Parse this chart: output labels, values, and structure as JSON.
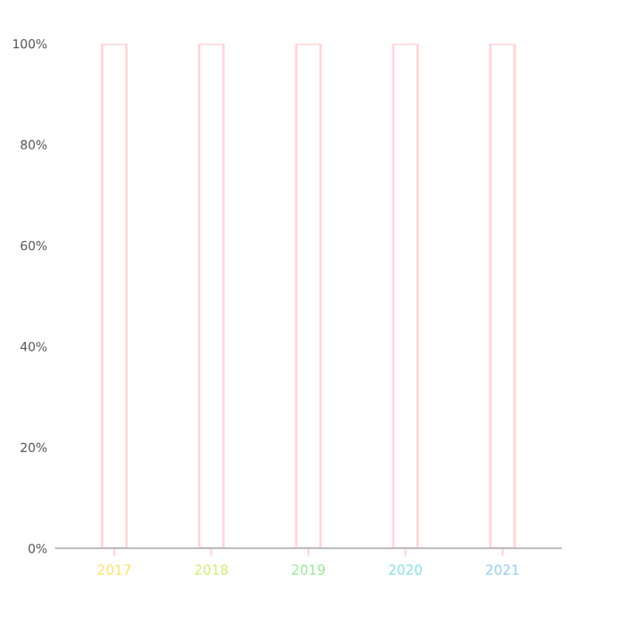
{
  "chart_data": {
    "type": "bar",
    "categories": [
      "2017",
      "2018",
      "2019",
      "2020",
      "2021"
    ],
    "values": [
      100,
      100,
      100,
      100,
      100
    ],
    "color": "#ffd6d6",
    "ylim": [
      0,
      100
    ],
    "yticks": [
      {
        "value": 0,
        "label": "0%"
      },
      {
        "value": 20,
        "label": "20%"
      },
      {
        "value": 40,
        "label": "40%"
      },
      {
        "value": 60,
        "label": "60%"
      },
      {
        "value": 80,
        "label": "80%"
      },
      {
        "value": 100,
        "label": "100%"
      }
    ],
    "grid": false
  }
}
